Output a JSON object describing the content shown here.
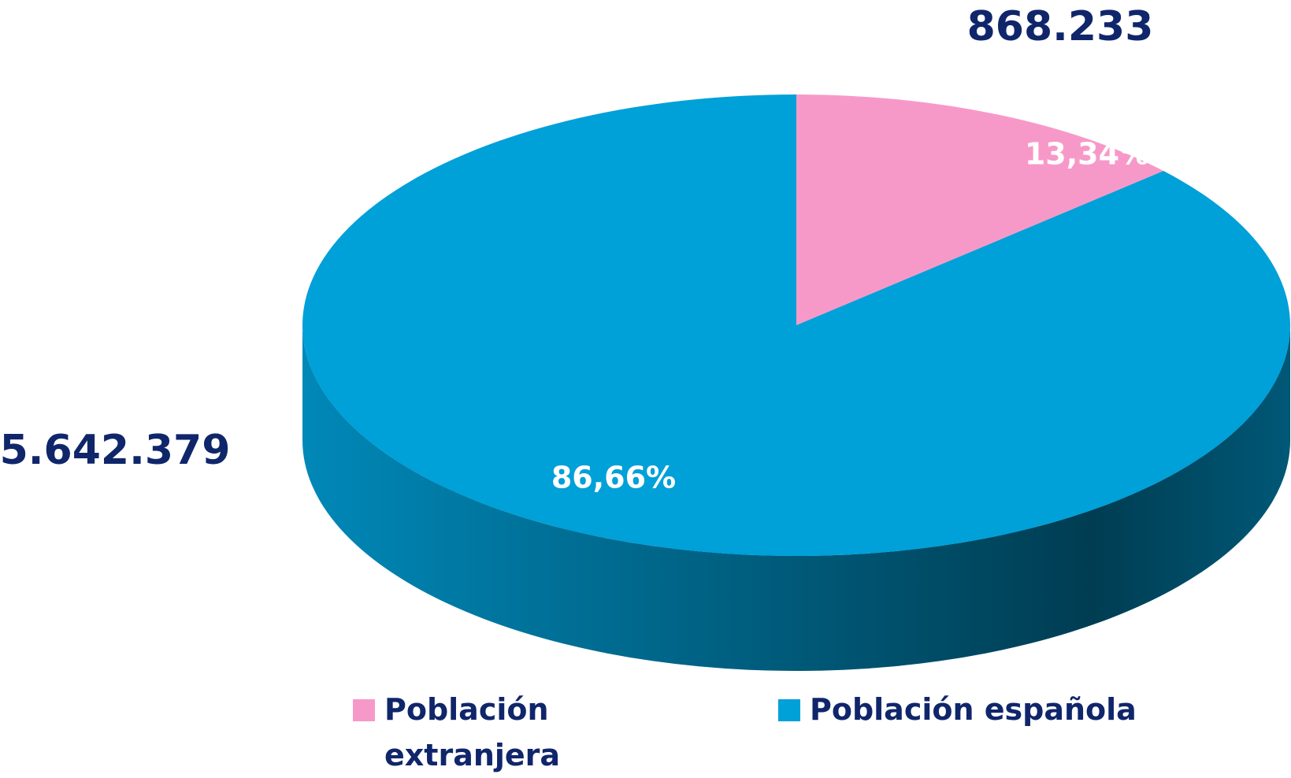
{
  "chart_data": {
    "type": "pie",
    "categories": [
      "Población extranjera",
      "Población española"
    ],
    "values": [
      13.34,
      86.66
    ],
    "value_labels": [
      "13,34%",
      "86,66%"
    ],
    "counts": [
      868233,
      5642379
    ],
    "count_labels": [
      "868.233",
      "5.642.379"
    ],
    "colors": [
      "#f799c8",
      "#00a0d8"
    ]
  }
}
